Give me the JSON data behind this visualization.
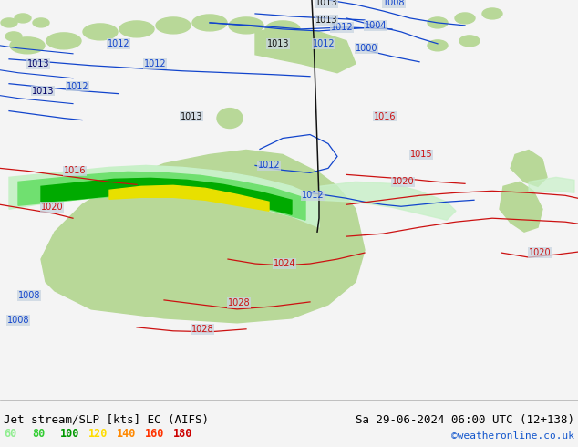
{
  "title_left": "Jet stream/SLP [kts] EC (AIFS)",
  "title_right": "Sa 29-06-2024 06:00 UTC (12+138)",
  "credit": "©weatheronline.co.uk",
  "legend_values": [
    "60",
    "80",
    "100",
    "120",
    "140",
    "160",
    "180"
  ],
  "legend_colors": [
    "#90ee90",
    "#32cd32",
    "#009900",
    "#ffdd00",
    "#ff8800",
    "#ff3300",
    "#cc0000"
  ],
  "bg_color": "#c8d4e0",
  "land_color": "#b8d898",
  "ocean_color": "#c8d4e0",
  "bottom_bar_color": "#f4f4f4",
  "jet_60": "#c8f0c8",
  "jet_80": "#70e070",
  "jet_100": "#00aa00",
  "jet_120": "#e8e000",
  "isobar_blue": "#1144cc",
  "isobar_red": "#cc1111",
  "isobar_black": "#111111",
  "title_font_size": 9,
  "credit_color": "#1155cc"
}
